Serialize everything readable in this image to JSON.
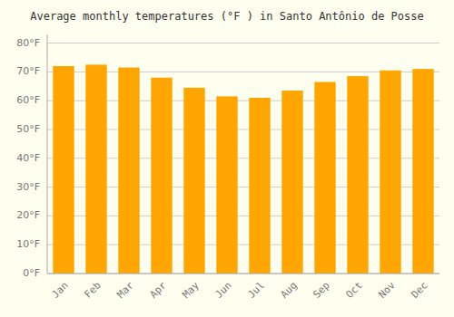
{
  "chart_data": {
    "type": "bar",
    "title": "Average monthly temperatures (°F ) in Santo Antônio de Posse",
    "categories": [
      "Jan",
      "Feb",
      "Mar",
      "Apr",
      "May",
      "Jun",
      "Jul",
      "Aug",
      "Sep",
      "Oct",
      "Nov",
      "Dec"
    ],
    "values": [
      72,
      72.5,
      71.5,
      68,
      64.5,
      61.5,
      61,
      63.5,
      66.5,
      68.5,
      70.5,
      71
    ],
    "color": "#FFA500",
    "ylim": [
      0,
      83
    ],
    "yticks": [
      {
        "value": 0,
        "label": "0°F"
      },
      {
        "value": 10,
        "label": "10°F"
      },
      {
        "value": 20,
        "label": "20°F"
      },
      {
        "value": 30,
        "label": "30°F"
      },
      {
        "value": 40,
        "label": "40°F"
      },
      {
        "value": 50,
        "label": "50°F"
      },
      {
        "value": 60,
        "label": "60°F"
      },
      {
        "value": 70,
        "label": "70°F"
      },
      {
        "value": 80,
        "label": "80°F"
      }
    ],
    "grid": true
  }
}
